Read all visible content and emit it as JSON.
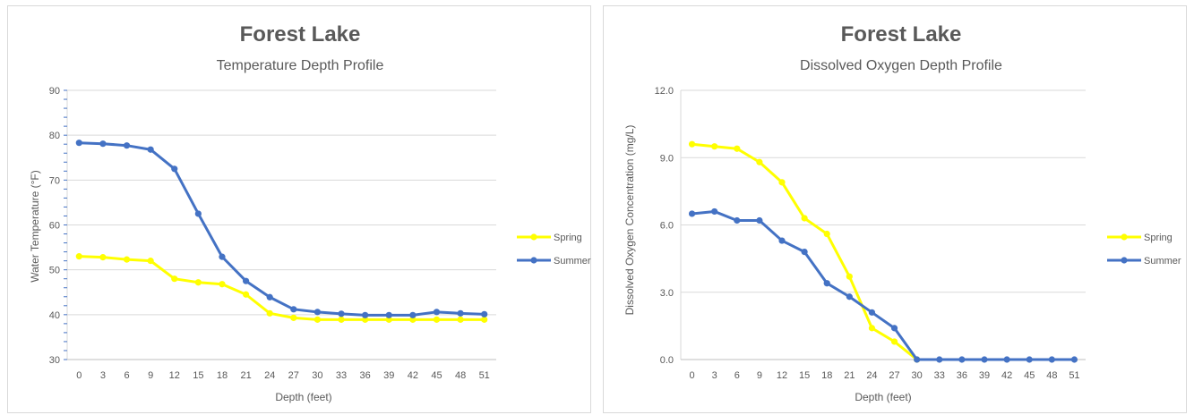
{
  "colors": {
    "spring": "#ffff00",
    "summer": "#4472c4",
    "grid": "#d9d9d9",
    "text": "#595959"
  },
  "chart_data": [
    {
      "type": "line",
      "title": "Forest Lake",
      "subtitle": "Temperature  Depth Profile",
      "xlabel": "Depth (feet)",
      "ylabel": "Water Temperature (°F)",
      "x": [
        0,
        3,
        6,
        9,
        12,
        15,
        18,
        21,
        24,
        27,
        30,
        33,
        36,
        39,
        42,
        45,
        48,
        51
      ],
      "ylim": [
        30,
        90
      ],
      "yticks": [
        "30",
        "40",
        "50",
        "60",
        "70",
        "80",
        "90"
      ],
      "grid": true,
      "legend": "right",
      "series": [
        {
          "name": "Spring",
          "color": "#ffff00",
          "values": [
            53.0,
            52.8,
            52.3,
            52.0,
            48.0,
            47.2,
            46.8,
            44.5,
            40.3,
            39.3,
            38.9,
            38.9,
            38.9,
            38.9,
            38.9,
            38.9,
            38.9,
            38.9
          ]
        },
        {
          "name": "Summer",
          "color": "#4472c4",
          "values": [
            78.3,
            78.1,
            77.7,
            76.8,
            72.5,
            62.5,
            52.9,
            47.5,
            43.9,
            41.2,
            40.6,
            40.2,
            39.9,
            39.9,
            39.9,
            40.6,
            40.3,
            40.1
          ]
        }
      ]
    },
    {
      "type": "line",
      "title": "Forest Lake",
      "subtitle": "Dissolved Oxygen Depth Profile",
      "xlabel": "Depth (feet)",
      "ylabel": "Dissolved Oxygen Concentration (mg/L)",
      "x": [
        0,
        3,
        6,
        9,
        12,
        15,
        18,
        21,
        24,
        27,
        30,
        33,
        36,
        39,
        42,
        45,
        48,
        51
      ],
      "ylim": [
        0,
        12
      ],
      "yticks": [
        "0.0",
        "3.0",
        "6.0",
        "9.0",
        "12.0"
      ],
      "grid": true,
      "legend": "right",
      "series": [
        {
          "name": "Spring",
          "color": "#ffff00",
          "values": [
            9.6,
            9.5,
            9.4,
            8.8,
            7.9,
            6.3,
            5.6,
            3.7,
            1.4,
            0.8,
            0.0,
            null,
            null,
            null,
            null,
            null,
            null,
            null
          ]
        },
        {
          "name": "Summer",
          "color": "#4472c4",
          "values": [
            6.5,
            6.6,
            6.2,
            6.2,
            5.3,
            4.8,
            3.4,
            2.8,
            2.1,
            1.4,
            0.0,
            0.0,
            0.0,
            0.0,
            0.0,
            0.0,
            0.0,
            0.0
          ]
        }
      ]
    }
  ]
}
